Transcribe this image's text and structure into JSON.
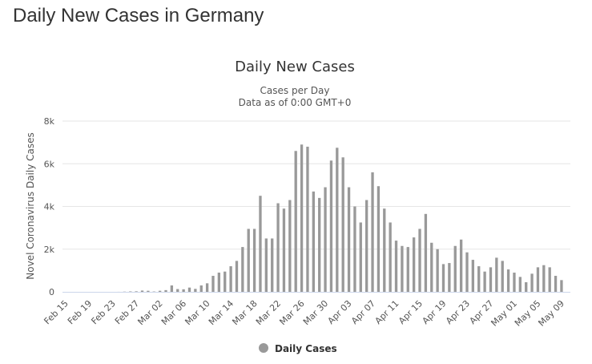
{
  "page": {
    "heading": "Daily New Cases in Germany"
  },
  "colors": {
    "bar": "#999999",
    "grid": "#e6e6e6",
    "axis": "#ccd6eb",
    "legend_marker": "#999999"
  },
  "chart_data": {
    "type": "bar",
    "title": "Daily New Cases",
    "subtitle_line1": "Cases per Day",
    "subtitle_line2": "Data as of 0:00 GMT+0",
    "xlabel": "",
    "ylabel": "Novel Coronavirus Daily Cases",
    "ylim": [
      0,
      8000
    ],
    "yticks": [
      0,
      2000,
      4000,
      6000,
      8000
    ],
    "ytick_labels": [
      "0",
      "2k",
      "4k",
      "6k",
      "8k"
    ],
    "grid": true,
    "legend_position": "bottom-center",
    "xtick_labels": [
      "Feb 15",
      "Feb 19",
      "Feb 23",
      "Feb 27",
      "Mar 02",
      "Mar 06",
      "Mar 10",
      "Mar 14",
      "Mar 18",
      "Mar 22",
      "Mar 26",
      "Mar 30",
      "Apr 03",
      "Apr 07",
      "Apr 11",
      "Apr 15",
      "Apr 19",
      "Apr 23",
      "Apr 27",
      "May 01",
      "May 05",
      "May 09"
    ],
    "categories": [
      "Feb 15",
      "Feb 16",
      "Feb 17",
      "Feb 18",
      "Feb 19",
      "Feb 20",
      "Feb 21",
      "Feb 22",
      "Feb 23",
      "Feb 24",
      "Feb 25",
      "Feb 26",
      "Feb 27",
      "Feb 28",
      "Feb 29",
      "Mar 01",
      "Mar 02",
      "Mar 03",
      "Mar 04",
      "Mar 05",
      "Mar 06",
      "Mar 07",
      "Mar 08",
      "Mar 09",
      "Mar 10",
      "Mar 11",
      "Mar 12",
      "Mar 13",
      "Mar 14",
      "Mar 15",
      "Mar 16",
      "Mar 17",
      "Mar 18",
      "Mar 19",
      "Mar 20",
      "Mar 21",
      "Mar 22",
      "Mar 23",
      "Mar 24",
      "Mar 25",
      "Mar 26",
      "Mar 27",
      "Mar 28",
      "Mar 29",
      "Mar 30",
      "Mar 31",
      "Apr 01",
      "Apr 02",
      "Apr 03",
      "Apr 04",
      "Apr 05",
      "Apr 06",
      "Apr 07",
      "Apr 08",
      "Apr 09",
      "Apr 10",
      "Apr 11",
      "Apr 12",
      "Apr 13",
      "Apr 14",
      "Apr 15",
      "Apr 16",
      "Apr 17",
      "Apr 18",
      "Apr 19",
      "Apr 20",
      "Apr 21",
      "Apr 22",
      "Apr 23",
      "Apr 24",
      "Apr 25",
      "Apr 26",
      "Apr 27",
      "Apr 28",
      "Apr 29",
      "Apr 30",
      "May 01",
      "May 02",
      "May 03",
      "May 04",
      "May 05",
      "May 06",
      "May 07",
      "May 08",
      "May 09",
      "May 10"
    ],
    "series": [
      {
        "name": "Daily Cases",
        "values": [
          0,
          0,
          0,
          0,
          0,
          0,
          0,
          0,
          0,
          2,
          10,
          20,
          25,
          60,
          50,
          15,
          50,
          80,
          300,
          130,
          120,
          200,
          140,
          300,
          400,
          750,
          900,
          950,
          1200,
          1450,
          2100,
          2950,
          2950,
          4500,
          2500,
          2500,
          4150,
          3900,
          4300,
          6600,
          6900,
          6800,
          4700,
          4400,
          4900,
          6150,
          6750,
          6300,
          4900,
          4000,
          3250,
          4300,
          5600,
          4950,
          3900,
          3250,
          2400,
          2150,
          2100,
          2550,
          2950,
          3650,
          2300,
          2000,
          1300,
          1350,
          2150,
          2450,
          1850,
          1500,
          1200,
          950,
          1150,
          1600,
          1450,
          1050,
          900,
          700,
          450,
          850,
          1150,
          1250,
          1150,
          750,
          550,
          0
        ]
      }
    ]
  },
  "legend": {
    "label": "Daily Cases"
  }
}
